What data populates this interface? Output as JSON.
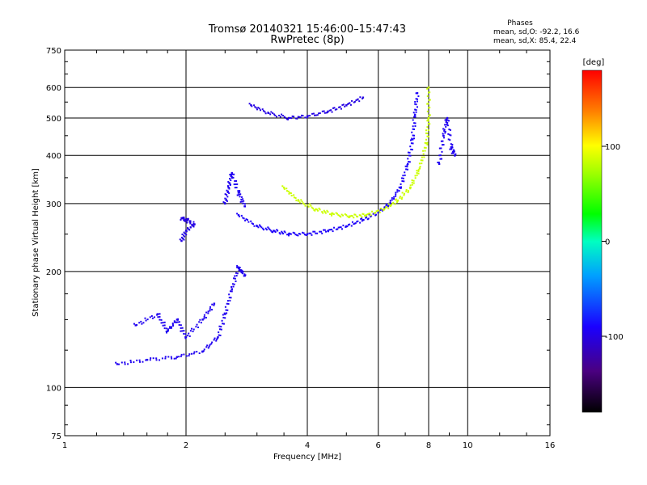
{
  "header": {
    "title_line1": "Tromsø 20140321 15:46:00–15:47:43",
    "title_line2": "RwPretec (8p)",
    "stats_title": "Phases",
    "stats_o": "mean, sd,O: -92.2, 16.6",
    "stats_x": "mean, sd,X:  85.4, 22.4"
  },
  "colorbar": {
    "unit": "[deg]",
    "range": [
      -180,
      180
    ],
    "ticks": [
      {
        "value": 100,
        "label": "100"
      },
      {
        "value": 0,
        "label": "0"
      },
      {
        "value": -100,
        "label": "-100"
      }
    ]
  },
  "chart_data": {
    "type": "scatter",
    "xlabel": "Frequency [MHz]",
    "ylabel": "Stationary phase Virtual Height [km]",
    "xscale": "log",
    "yscale": "log",
    "xlim": [
      1,
      16
    ],
    "ylim": [
      75,
      750
    ],
    "grid": true,
    "xticks": [
      {
        "value": 1,
        "label": "1"
      },
      {
        "value": 2,
        "label": "2"
      },
      {
        "value": 4,
        "label": "4"
      },
      {
        "value": 6,
        "label": "6"
      },
      {
        "value": 8,
        "label": "8"
      },
      {
        "value": 10,
        "label": "10"
      },
      {
        "value": 16,
        "label": "16"
      }
    ],
    "yticks": [
      {
        "value": 75,
        "label": "75"
      },
      {
        "value": 100,
        "label": "100"
      },
      {
        "value": 200,
        "label": "200"
      },
      {
        "value": 300,
        "label": "300"
      },
      {
        "value": 400,
        "label": "400"
      },
      {
        "value": 500,
        "label": "500"
      },
      {
        "value": 600,
        "label": "600"
      },
      {
        "value": 750,
        "label": "750"
      }
    ],
    "traces": [
      {
        "trace": "F-layer O-mode arc",
        "phase_deg": -92,
        "points": [
          [
            2.7,
            280
          ],
          [
            3.0,
            262
          ],
          [
            3.3,
            255
          ],
          [
            3.6,
            250
          ],
          [
            4.0,
            250
          ],
          [
            4.5,
            255
          ],
          [
            5.0,
            262
          ],
          [
            5.5,
            272
          ],
          [
            6.0,
            285
          ],
          [
            6.4,
            300
          ],
          [
            6.8,
            330
          ],
          [
            7.1,
            380
          ],
          [
            7.3,
            440
          ],
          [
            7.4,
            510
          ],
          [
            7.5,
            580
          ]
        ]
      },
      {
        "trace": "F-layer X-mode arc",
        "phase_deg": 85,
        "points": [
          [
            3.5,
            330
          ],
          [
            3.8,
            305
          ],
          [
            4.2,
            290
          ],
          [
            4.6,
            282
          ],
          [
            5.1,
            278
          ],
          [
            5.6,
            280
          ],
          [
            6.2,
            290
          ],
          [
            6.7,
            305
          ],
          [
            7.2,
            330
          ],
          [
            7.6,
            370
          ],
          [
            7.9,
            430
          ],
          [
            8.0,
            500
          ],
          [
            8.0,
            600
          ]
        ]
      },
      {
        "trace": "E-region O-mode trace",
        "phase_deg": -95,
        "points": [
          [
            1.35,
            115
          ],
          [
            1.6,
            118
          ],
          [
            1.9,
            120
          ],
          [
            2.2,
            124
          ],
          [
            2.4,
            135
          ],
          [
            2.5,
            155
          ],
          [
            2.6,
            180
          ],
          [
            2.7,
            205
          ],
          [
            2.8,
            195
          ]
        ]
      },
      {
        "trace": "Sporadic/E layer spread",
        "phase_deg": -95,
        "points": [
          [
            1.5,
            145
          ],
          [
            1.7,
            155
          ],
          [
            1.8,
            140
          ],
          [
            1.9,
            150
          ],
          [
            2.0,
            135
          ],
          [
            2.2,
            150
          ],
          [
            2.35,
            165
          ]
        ]
      },
      {
        "trace": "Cusp near 2.5 MHz",
        "phase_deg": -95,
        "points": [
          [
            2.5,
            300
          ],
          [
            2.55,
            330
          ],
          [
            2.6,
            360
          ],
          [
            2.7,
            320
          ],
          [
            2.8,
            295
          ]
        ]
      },
      {
        "trace": "Patch near 2 MHz",
        "phase_deg": -100,
        "points": [
          [
            1.95,
            240
          ],
          [
            2.0,
            255
          ],
          [
            2.1,
            265
          ],
          [
            1.95,
            275
          ],
          [
            2.05,
            270
          ]
        ]
      },
      {
        "trace": "Upper arc (2x hop)",
        "phase_deg": -100,
        "points": [
          [
            2.9,
            540
          ],
          [
            3.2,
            515
          ],
          [
            3.6,
            500
          ],
          [
            4.0,
            505
          ],
          [
            4.5,
            520
          ],
          [
            5.0,
            540
          ],
          [
            5.5,
            565
          ]
        ]
      },
      {
        "trace": "Near-vertical band 8.5–9.5 MHz",
        "phase_deg": -95,
        "points": [
          [
            8.5,
            380
          ],
          [
            8.7,
            450
          ],
          [
            8.9,
            500
          ],
          [
            9.1,
            420
          ],
          [
            9.3,
            400
          ]
        ]
      }
    ]
  }
}
